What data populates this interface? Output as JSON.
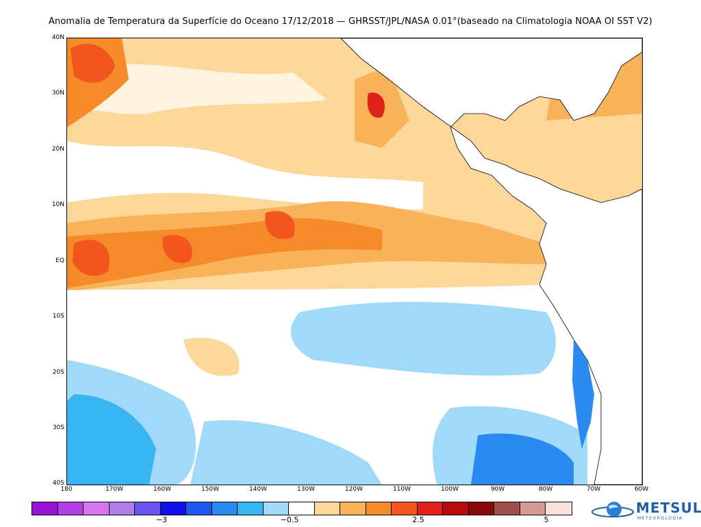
{
  "title": "Anomalia de Temperatura da Superfície do Oceano 17/12/2018 — GHRSST/JPL/NASA 0.01°(baseado na Climatologia NOAA OI SST V2)",
  "lat_labels": [
    "40N",
    "30N",
    "20N",
    "10N",
    "EQ",
    "10S",
    "20S",
    "30S",
    "40S"
  ],
  "lon_labels": [
    "180",
    "170W",
    "160W",
    "150W",
    "140W",
    "130W",
    "120W",
    "110W",
    "100W",
    "90W",
    "80W",
    "70W",
    "60W"
  ],
  "colorbar": {
    "colors": [
      "#9a10d8",
      "#b340e6",
      "#d774ee",
      "#b07ce8",
      "#6a52f0",
      "#1010e8",
      "#1f57ee",
      "#2a8af0",
      "#36b4f4",
      "#a0daf8",
      "#ffffff",
      "#fcd79a",
      "#f7b25a",
      "#f58a28",
      "#f2551e",
      "#e0201a",
      "#b80c0c",
      "#8a0a0a",
      "#a0504a",
      "#d49a94",
      "#fbe0dc"
    ],
    "labels": [
      "−3",
      "−0.5",
      "2.5",
      "5"
    ]
  },
  "logo": {
    "name": "METSUL",
    "sub": "METEOROLOGIA"
  }
}
